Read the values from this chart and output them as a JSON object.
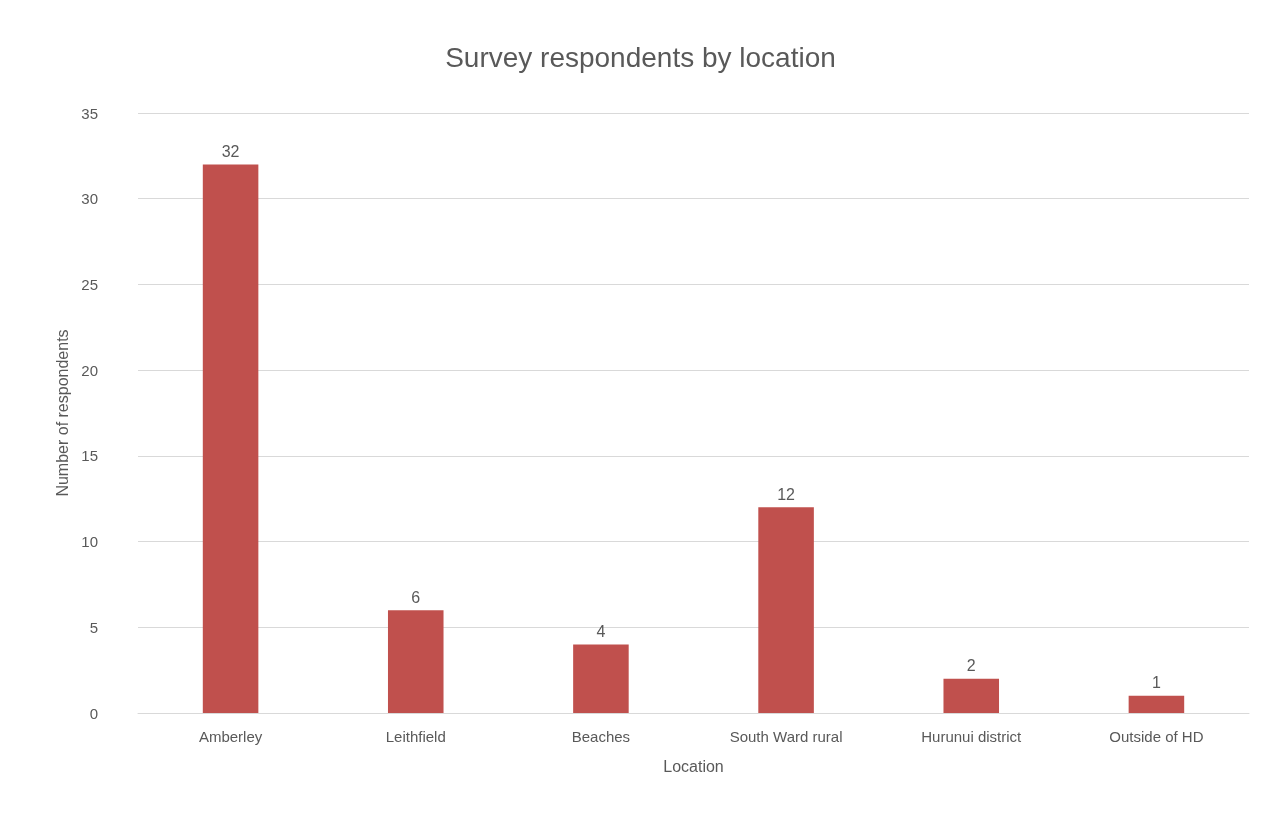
{
  "chart_data": {
    "type": "bar",
    "title": "Survey respondents by location",
    "xlabel": "Location",
    "ylabel": "Number of respondents",
    "categories": [
      "Amberley",
      "Leithfield",
      "Beaches",
      "South Ward rural",
      "Hurunui district",
      "Outside of HD"
    ],
    "values": [
      32,
      6,
      4,
      12,
      2,
      1
    ],
    "color": "#c0504d",
    "data_labels": true,
    "ylim": [
      0,
      35
    ],
    "yticks": [
      0,
      5,
      10,
      15,
      20,
      25,
      30,
      35
    ],
    "grid": "y"
  }
}
